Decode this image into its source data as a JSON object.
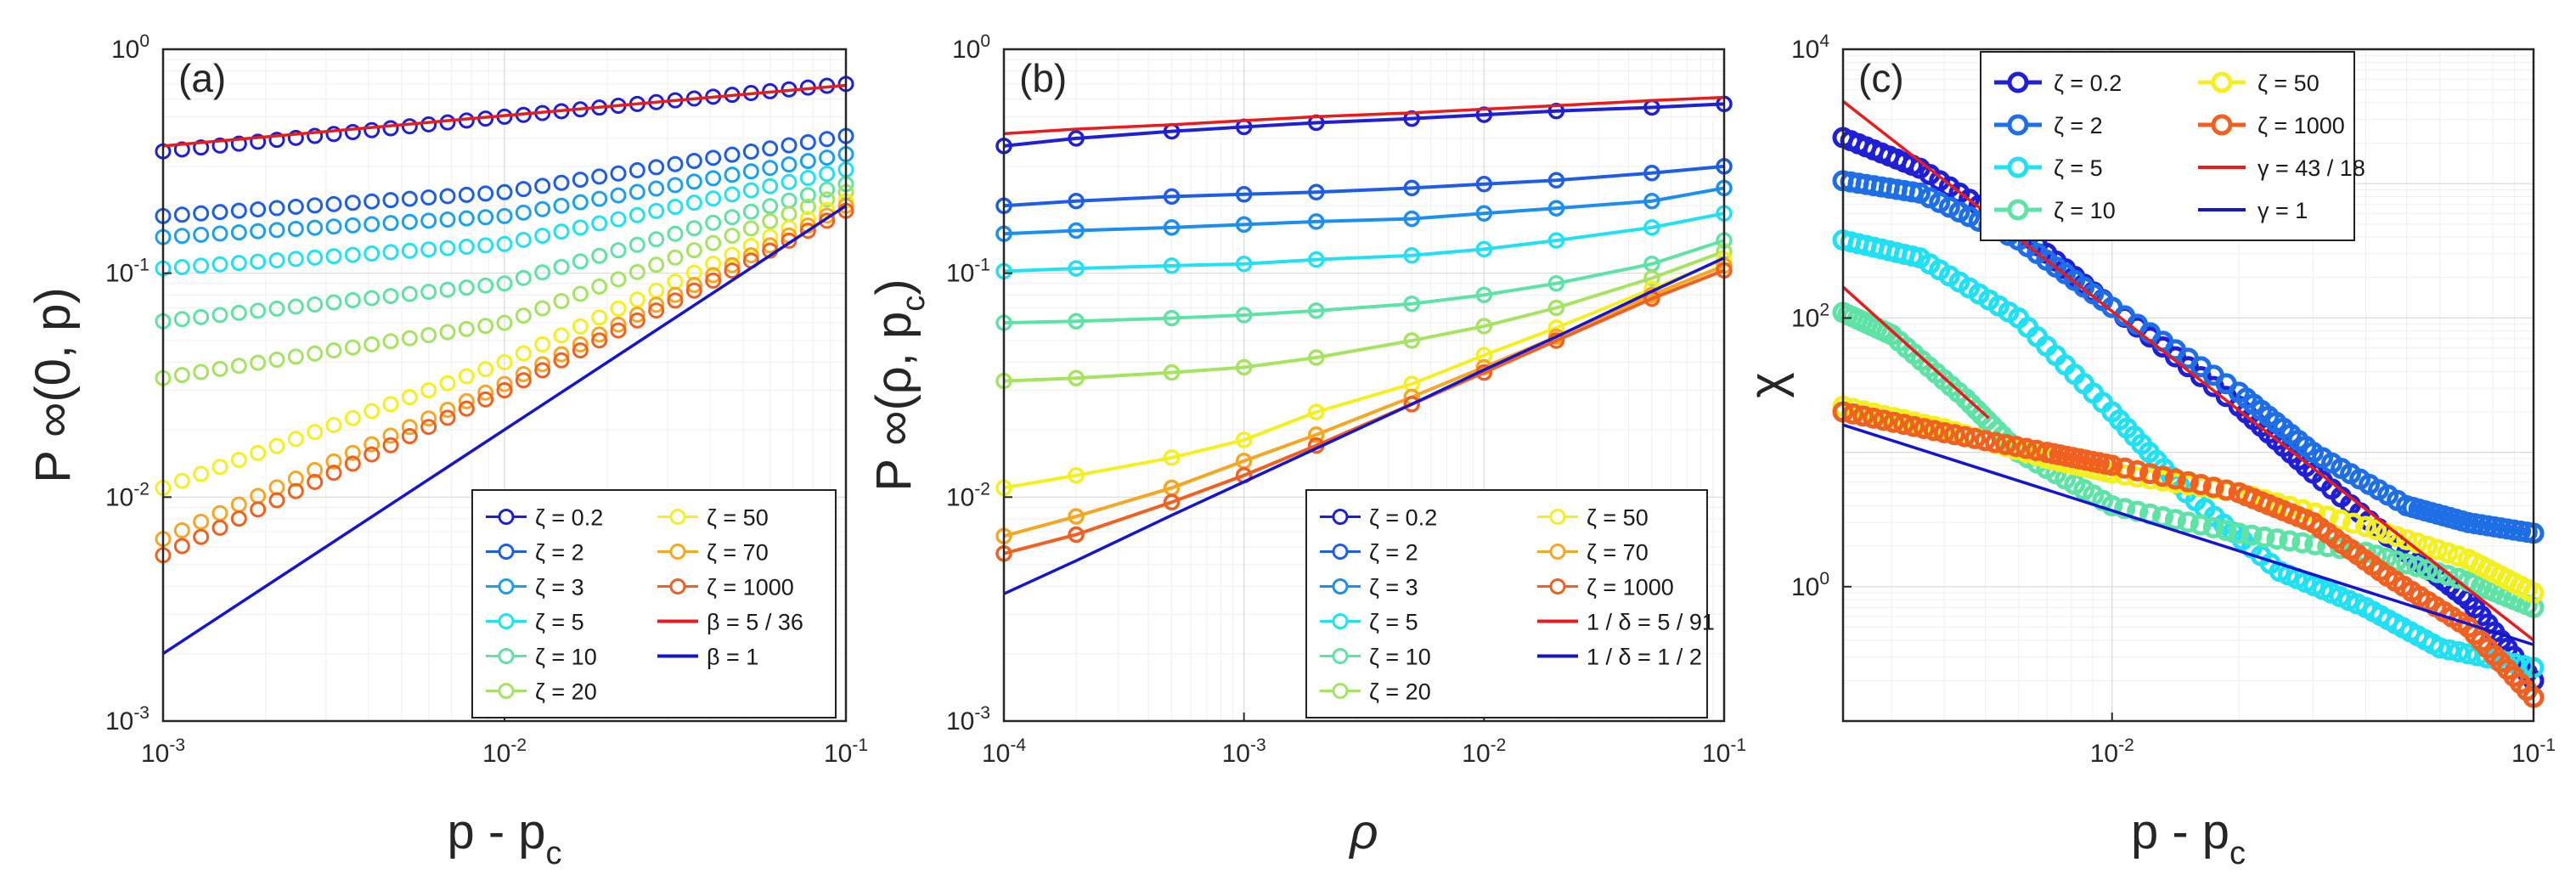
{
  "chart_data": [
    {
      "type": "scatter",
      "panel_label": "(a)",
      "xlabel": "p - p",
      "xlabel_sub": "c",
      "ylabel": "P ∞(0, p)",
      "xscale": "log",
      "yscale": "log",
      "xlim": [
        0.001,
        0.1
      ],
      "ylim": [
        0.001,
        1
      ],
      "xticks": [
        {
          "base": "10",
          "exp": "-3"
        },
        {
          "base": "10",
          "exp": "-2"
        },
        {
          "base": "10",
          "exp": "-1"
        }
      ],
      "yticks": [
        {
          "base": "10",
          "exp": "-3"
        },
        {
          "base": "10",
          "exp": "-2"
        },
        {
          "base": "10",
          "exp": "-1"
        },
        {
          "base": "10",
          "exp": "0"
        }
      ],
      "grid": true,
      "legend_position": "bottom-right",
      "legend_columns": 2,
      "series": [
        {
          "name": "ζ = 0.2",
          "color": "#1f1fd6",
          "marker": "circle",
          "values": [
            [
              0.001,
              0.35
            ],
            [
              0.01,
              0.5
            ],
            [
              0.1,
              0.7
            ]
          ]
        },
        {
          "name": "ζ = 2",
          "color": "#1e5ee6",
          "marker": "circle",
          "values": [
            [
              0.001,
              0.18
            ],
            [
              0.01,
              0.23
            ],
            [
              0.1,
              0.41
            ]
          ]
        },
        {
          "name": "ζ = 3",
          "color": "#1ba0f0",
          "marker": "circle",
          "values": [
            [
              0.001,
              0.145
            ],
            [
              0.01,
              0.18
            ],
            [
              0.1,
              0.34
            ]
          ]
        },
        {
          "name": "ζ = 5",
          "color": "#22e0f4",
          "marker": "circle",
          "values": [
            [
              0.001,
              0.105
            ],
            [
              0.01,
              0.135
            ],
            [
              0.1,
              0.29
            ]
          ]
        },
        {
          "name": "ζ = 10",
          "color": "#5fe2a6",
          "marker": "circle",
          "values": [
            [
              0.001,
              0.061
            ],
            [
              0.01,
              0.09
            ],
            [
              0.1,
              0.25
            ]
          ]
        },
        {
          "name": "ζ = 20",
          "color": "#a6e360",
          "marker": "circle",
          "values": [
            [
              0.001,
              0.034
            ],
            [
              0.01,
              0.06
            ],
            [
              0.1,
              0.23
            ]
          ]
        },
        {
          "name": "ζ = 50",
          "color": "#f4f020",
          "marker": "circle",
          "values": [
            [
              0.001,
              0.011
            ],
            [
              0.01,
              0.04
            ],
            [
              0.1,
              0.21
            ]
          ]
        },
        {
          "name": "ζ = 70",
          "color": "#f5a623",
          "marker": "circle",
          "values": [
            [
              0.001,
              0.0065
            ],
            [
              0.01,
              0.032
            ],
            [
              0.1,
              0.2
            ]
          ]
        },
        {
          "name": "ζ = 1000",
          "color": "#f06020",
          "marker": "circle",
          "values": [
            [
              0.001,
              0.0055
            ],
            [
              0.01,
              0.03
            ],
            [
              0.1,
              0.19
            ]
          ]
        },
        {
          "name": "β = 5 / 36",
          "color": "#e81c1c",
          "marker": "line",
          "values": [
            [
              0.001,
              0.37
            ],
            [
              0.1,
              0.69
            ]
          ]
        },
        {
          "name": "β = 1",
          "color": "#1515d0",
          "marker": "line",
          "values": [
            [
              0.001,
              0.002
            ],
            [
              0.1,
              0.2
            ]
          ]
        }
      ]
    },
    {
      "type": "line",
      "panel_label": "(b)",
      "xlabel": "ρ",
      "ylabel": "P ∞(ρ, p",
      "ylabel_sub": "c",
      "ylabel_close": ")",
      "xscale": "log",
      "yscale": "log",
      "xlim": [
        0.0001,
        0.1
      ],
      "ylim": [
        0.001,
        1
      ],
      "xticks": [
        {
          "base": "10",
          "exp": "-4"
        },
        {
          "base": "10",
          "exp": "-3"
        },
        {
          "base": "10",
          "exp": "-2"
        },
        {
          "base": "10",
          "exp": "-1"
        }
      ],
      "yticks": [
        {
          "base": "10",
          "exp": "-3"
        },
        {
          "base": "10",
          "exp": "-2"
        },
        {
          "base": "10",
          "exp": "-1"
        },
        {
          "base": "10",
          "exp": "0"
        }
      ],
      "x": [
        0.0001,
        0.0002,
        0.0005,
        0.001,
        0.002,
        0.005,
        0.01,
        0.02,
        0.05,
        0.1
      ],
      "grid": true,
      "legend_position": "bottom-right",
      "legend_columns": 2,
      "series": [
        {
          "name": "ζ = 0.2",
          "color": "#1f1fd6",
          "marker": "circle",
          "values": [
            0.37,
            0.4,
            0.43,
            0.45,
            0.47,
            0.49,
            0.51,
            0.53,
            0.55,
            0.57
          ]
        },
        {
          "name": "ζ = 2",
          "color": "#1e5ee6",
          "marker": "circle",
          "values": [
            0.2,
            0.21,
            0.22,
            0.225,
            0.23,
            0.24,
            0.25,
            0.26,
            0.28,
            0.3
          ]
        },
        {
          "name": "ζ = 3",
          "color": "#1b8ef0",
          "marker": "circle",
          "values": [
            0.15,
            0.155,
            0.16,
            0.165,
            0.17,
            0.175,
            0.185,
            0.195,
            0.21,
            0.24
          ]
        },
        {
          "name": "ζ = 5",
          "color": "#22e0f4",
          "marker": "circle",
          "values": [
            0.102,
            0.105,
            0.108,
            0.11,
            0.115,
            0.12,
            0.128,
            0.14,
            0.16,
            0.185
          ]
        },
        {
          "name": "ζ = 10",
          "color": "#5fe2a6",
          "marker": "circle",
          "values": [
            0.06,
            0.061,
            0.063,
            0.065,
            0.068,
            0.073,
            0.08,
            0.09,
            0.11,
            0.14
          ]
        },
        {
          "name": "ζ = 20",
          "color": "#a6e360",
          "marker": "circle",
          "values": [
            0.033,
            0.034,
            0.036,
            0.038,
            0.042,
            0.05,
            0.058,
            0.07,
            0.095,
            0.125
          ]
        },
        {
          "name": "ζ = 50",
          "color": "#f4f020",
          "marker": "circle",
          "values": [
            0.011,
            0.0125,
            0.015,
            0.018,
            0.024,
            0.032,
            0.043,
            0.057,
            0.085,
            0.115
          ]
        },
        {
          "name": "ζ = 70",
          "color": "#f5a623",
          "marker": "circle",
          "values": [
            0.0067,
            0.0082,
            0.011,
            0.0145,
            0.019,
            0.028,
            0.038,
            0.052,
            0.08,
            0.108
          ]
        },
        {
          "name": "ζ = 1000",
          "color": "#f06020",
          "marker": "circle",
          "values": [
            0.0056,
            0.0068,
            0.0095,
            0.0125,
            0.017,
            0.026,
            0.036,
            0.05,
            0.077,
            0.103
          ]
        },
        {
          "name": "1 / δ = 5 / 91",
          "color": "#e81c1c",
          "marker": "line",
          "values": [
            0.42,
            0.44,
            0.46,
            0.48,
            0.5,
            0.52,
            0.54,
            0.56,
            0.59,
            0.61
          ]
        },
        {
          "name": "1 / δ = 1 / 2",
          "color": "#1515d0",
          "marker": "line",
          "values": [
            0.0037,
            0.0052,
            0.0083,
            0.0117,
            0.0165,
            0.026,
            0.037,
            0.052,
            0.083,
            0.117
          ]
        }
      ]
    },
    {
      "type": "scatter",
      "panel_label": "(c)",
      "xlabel": "p - p",
      "xlabel_sub": "c",
      "ylabel": "χ",
      "xscale": "log",
      "yscale": "log",
      "xlim": [
        0.0023,
        0.1
      ],
      "ylim": [
        0.1,
        10000
      ],
      "xticks": [
        {
          "base": "10",
          "exp": "-2"
        },
        {
          "base": "10",
          "exp": "-1"
        }
      ],
      "yticks": [
        {
          "base": "10",
          "exp": "0"
        },
        {
          "base": "10",
          "exp": "2"
        },
        {
          "base": "10",
          "exp": "4"
        }
      ],
      "grid": true,
      "legend_position": "top-right",
      "legend_columns": 2,
      "series": [
        {
          "name": "ζ = 0.2",
          "color": "#1f1fd6",
          "marker": "circle",
          "values": [
            [
              0.0023,
              2200
            ],
            [
              0.0035,
              1300
            ],
            [
              0.006,
              450
            ],
            [
              0.01,
              120
            ],
            [
              0.02,
              22
            ],
            [
              0.03,
              7
            ],
            [
              0.05,
              1.8
            ],
            [
              0.07,
              0.8
            ],
            [
              0.1,
              0.2
            ]
          ]
        },
        {
          "name": "ζ = 2",
          "color": "#1e6ee6",
          "marker": "circle",
          "values": [
            [
              0.0023,
              1050
            ],
            [
              0.0035,
              850
            ],
            [
              0.006,
              380
            ],
            [
              0.01,
              120
            ],
            [
              0.02,
              28
            ],
            [
              0.03,
              10
            ],
            [
              0.05,
              4
            ],
            [
              0.07,
              3
            ],
            [
              0.1,
              2.5
            ]
          ]
        },
        {
          "name": "ζ = 5",
          "color": "#22e0f4",
          "marker": "circle",
          "values": [
            [
              0.0023,
              380
            ],
            [
              0.0035,
              280
            ],
            [
              0.006,
              100
            ],
            [
              0.01,
              20
            ],
            [
              0.015,
              5
            ],
            [
              0.025,
              1.3
            ],
            [
              0.04,
              0.7
            ],
            [
              0.06,
              0.35
            ],
            [
              0.1,
              0.25
            ]
          ]
        },
        {
          "name": "ζ = 10",
          "color": "#5fe2a6",
          "marker": "circle",
          "values": [
            [
              0.0023,
              110
            ],
            [
              0.003,
              75
            ],
            [
              0.0045,
              25
            ],
            [
              0.006,
              10
            ],
            [
              0.01,
              4
            ],
            [
              0.02,
              2.5
            ],
            [
              0.04,
              1.8
            ],
            [
              0.07,
              1.1
            ],
            [
              0.1,
              0.7
            ]
          ]
        },
        {
          "name": "ζ = 50",
          "color": "#f4f020",
          "marker": "circle",
          "values": [
            [
              0.0023,
              22
            ],
            [
              0.004,
              15
            ],
            [
              0.007,
              9
            ],
            [
              0.01,
              7
            ],
            [
              0.02,
              5
            ],
            [
              0.04,
              2.8
            ],
            [
              0.07,
              1.6
            ],
            [
              0.1,
              0.9
            ]
          ]
        },
        {
          "name": "ζ = 1000",
          "color": "#f06020",
          "marker": "circle",
          "values": [
            [
              0.0023,
              20
            ],
            [
              0.004,
              14
            ],
            [
              0.007,
              10
            ],
            [
              0.01,
              8
            ],
            [
              0.02,
              5
            ],
            [
              0.03,
              3
            ],
            [
              0.045,
              1.2
            ],
            [
              0.07,
              0.5
            ],
            [
              0.1,
              0.15
            ]
          ]
        },
        {
          "name": "γ = 43 / 18",
          "color": "#e81c1c",
          "marker": "line",
          "values": [
            [
              0.0023,
              4100
            ],
            [
              0.1,
              0.4
            ]
          ]
        },
        {
          "name": "γ = 1",
          "color": "#1515d0",
          "marker": "line",
          "values": [
            [
              0.0023,
              16
            ],
            [
              0.1,
              0.37
            ]
          ]
        },
        {
          "name": "",
          "color": "#e81c1c",
          "marker": "line",
          "values": [
            [
              0.0023,
              170
            ],
            [
              0.0051,
              18
            ]
          ]
        }
      ]
    }
  ]
}
